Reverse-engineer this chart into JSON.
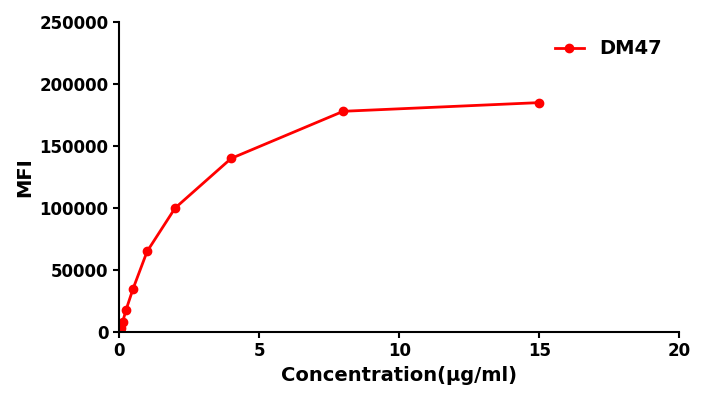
{
  "x": [
    0.0,
    0.00781,
    0.015625,
    0.03125,
    0.0625,
    0.125,
    0.25,
    0.5,
    1.0,
    2.0,
    4.0,
    8.0,
    15.0
  ],
  "y": [
    0,
    200,
    500,
    1500,
    3500,
    8000,
    18000,
    35000,
    65000,
    100000,
    140000,
    178000,
    185000
  ],
  "line_color": "#FF0000",
  "marker": "o",
  "marker_size": 6,
  "line_width": 2.0,
  "xlabel": "Concentration(μg/ml)",
  "ylabel": "MFI",
  "legend_label": "DM47",
  "xlim": [
    0,
    20
  ],
  "ylim": [
    0,
    250000
  ],
  "yticks": [
    0,
    50000,
    100000,
    150000,
    200000,
    250000
  ],
  "xticks": [
    0,
    5,
    10,
    15,
    20
  ],
  "xlabel_fontsize": 14,
  "ylabel_fontsize": 14,
  "tick_fontsize": 12,
  "legend_fontsize": 14,
  "background_color": "#ffffff"
}
